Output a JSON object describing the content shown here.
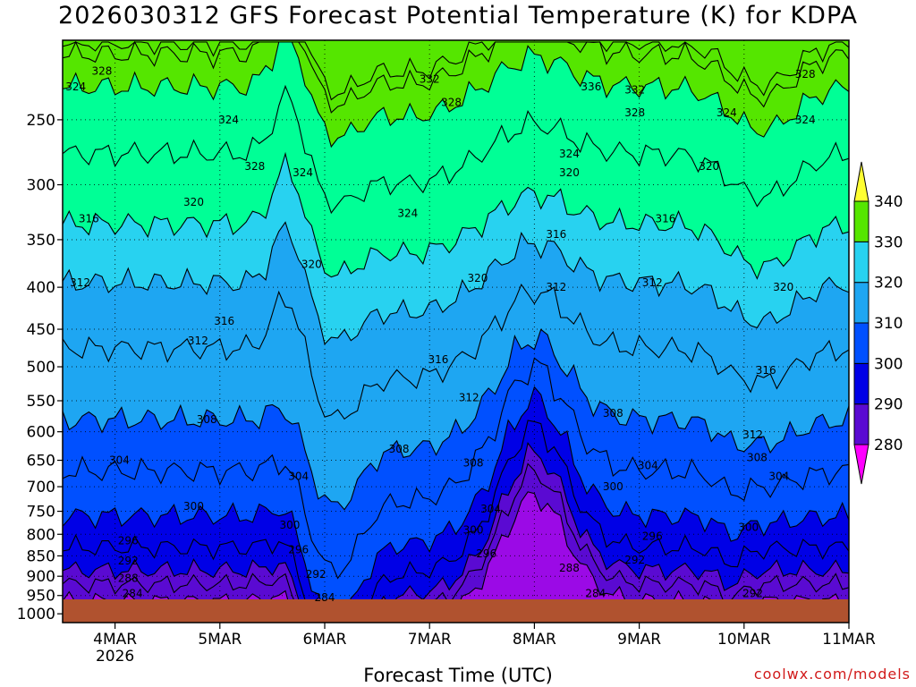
{
  "chart_data": {
    "type": "heatmap",
    "title": "2026030312 GFS Forecast Potential Temperature (K) for KDPA",
    "xlabel": "Forecast Time (UTC)",
    "ylabel": "",
    "credit": "coolwx.com/models",
    "x_ticks": [
      {
        "hours": 12,
        "label": "4MAR",
        "sublabel": "2026"
      },
      {
        "hours": 36,
        "label": "5MAR",
        "sublabel": ""
      },
      {
        "hours": 60,
        "label": "6MAR",
        "sublabel": ""
      },
      {
        "hours": 84,
        "label": "7MAR",
        "sublabel": ""
      },
      {
        "hours": 108,
        "label": "8MAR",
        "sublabel": ""
      },
      {
        "hours": 132,
        "label": "9MAR",
        "sublabel": ""
      },
      {
        "hours": 156,
        "label": "10MAR",
        "sublabel": ""
      },
      {
        "hours": 180,
        "label": "11MAR",
        "sublabel": ""
      }
    ],
    "x_range_hours": [
      0,
      180
    ],
    "y_ticks": [
      250,
      300,
      350,
      400,
      450,
      500,
      550,
      600,
      650,
      700,
      750,
      800,
      850,
      900,
      950,
      1000
    ],
    "y_range_hpa": [
      200,
      1025
    ],
    "y_scale": "log-pressure",
    "colorbar": {
      "levels": [
        280,
        290,
        300,
        310,
        320,
        330,
        340
      ],
      "colors": [
        "#9b0ae6",
        "#5a0ad2",
        "#0000e6",
        "#0050ff",
        "#1ea6f2",
        "#28d2f0",
        "#00ff96",
        "#55e600",
        "#ffff32"
      ],
      "under_color": "#ff00ff",
      "over_color": "#ffff32"
    },
    "surface_color": "#b0522f",
    "isotherm_bases_k": [
      {
        "theta": 284,
        "p": 965
      },
      {
        "theta": 288,
        "p": 920
      },
      {
        "theta": 292,
        "p": 885
      },
      {
        "theta": 296,
        "p": 830
      },
      {
        "theta": 300,
        "p": 760
      },
      {
        "theta": 304,
        "p": 670
      },
      {
        "theta": 308,
        "p": 580
      },
      {
        "theta": 312,
        "p": 475
      },
      {
        "theta": 316,
        "p": 395
      },
      {
        "theta": 320,
        "p": 335
      },
      {
        "theta": 324,
        "p": 275
      },
      {
        "theta": 328,
        "p": 228
      },
      {
        "theta": 332,
        "p": 208
      },
      {
        "theta": 336,
        "p": 201
      }
    ],
    "contour_labels": [
      {
        "theta": 328,
        "hours": 9,
        "p": 218
      },
      {
        "theta": 324,
        "hours": 3,
        "p": 228
      },
      {
        "theta": 316,
        "hours": 6,
        "p": 330
      },
      {
        "theta": 312,
        "hours": 4,
        "p": 395
      },
      {
        "theta": 304,
        "hours": 13,
        "p": 650
      },
      {
        "theta": 300,
        "hours": 30,
        "p": 740
      },
      {
        "theta": 296,
        "hours": 15,
        "p": 815
      },
      {
        "theta": 292,
        "hours": 15,
        "p": 862
      },
      {
        "theta": 288,
        "hours": 15,
        "p": 905
      },
      {
        "theta": 284,
        "hours": 16,
        "p": 945
      },
      {
        "theta": 320,
        "hours": 30,
        "p": 315
      },
      {
        "theta": 316,
        "hours": 37,
        "p": 440
      },
      {
        "theta": 312,
        "hours": 31,
        "p": 465
      },
      {
        "theta": 308,
        "hours": 33,
        "p": 580
      },
      {
        "theta": 324,
        "hours": 38,
        "p": 250
      },
      {
        "theta": 328,
        "hours": 44,
        "p": 285
      },
      {
        "theta": 324,
        "hours": 55,
        "p": 290
      },
      {
        "theta": 320,
        "hours": 57,
        "p": 375
      },
      {
        "theta": 304,
        "hours": 54,
        "p": 680
      },
      {
        "theta": 300,
        "hours": 52,
        "p": 780
      },
      {
        "theta": 296,
        "hours": 54,
        "p": 835
      },
      {
        "theta": 292,
        "hours": 58,
        "p": 895
      },
      {
        "theta": 284,
        "hours": 60,
        "p": 955
      },
      {
        "theta": 324,
        "hours": 79,
        "p": 325
      },
      {
        "theta": 332,
        "hours": 84,
        "p": 223
      },
      {
        "theta": 328,
        "hours": 89,
        "p": 238
      },
      {
        "theta": 320,
        "hours": 95,
        "p": 390
      },
      {
        "theta": 316,
        "hours": 86,
        "p": 490
      },
      {
        "theta": 312,
        "hours": 93,
        "p": 545
      },
      {
        "theta": 308,
        "hours": 77,
        "p": 630
      },
      {
        "theta": 308,
        "hours": 94,
        "p": 655
      },
      {
        "theta": 304,
        "hours": 98,
        "p": 745
      },
      {
        "theta": 300,
        "hours": 94,
        "p": 790
      },
      {
        "theta": 296,
        "hours": 97,
        "p": 845
      },
      {
        "theta": 336,
        "hours": 121,
        "p": 228
      },
      {
        "theta": 332,
        "hours": 131,
        "p": 230
      },
      {
        "theta": 328,
        "hours": 131,
        "p": 245
      },
      {
        "theta": 324,
        "hours": 116,
        "p": 275
      },
      {
        "theta": 320,
        "hours": 116,
        "p": 290
      },
      {
        "theta": 316,
        "hours": 113,
        "p": 345
      },
      {
        "theta": 312,
        "hours": 113,
        "p": 400
      },
      {
        "theta": 308,
        "hours": 126,
        "p": 570
      },
      {
        "theta": 300,
        "hours": 126,
        "p": 700
      },
      {
        "theta": 288,
        "hours": 116,
        "p": 880
      },
      {
        "theta": 284,
        "hours": 122,
        "p": 945
      },
      {
        "theta": 292,
        "hours": 131,
        "p": 860
      },
      {
        "theta": 296,
        "hours": 135,
        "p": 805
      },
      {
        "theta": 304,
        "hours": 134,
        "p": 660
      },
      {
        "theta": 316,
        "hours": 138,
        "p": 330
      },
      {
        "theta": 312,
        "hours": 135,
        "p": 395
      },
      {
        "theta": 320,
        "hours": 148,
        "p": 285
      },
      {
        "theta": 324,
        "hours": 152,
        "p": 245
      },
      {
        "theta": 328,
        "hours": 170,
        "p": 220
      },
      {
        "theta": 324,
        "hours": 170,
        "p": 250
      },
      {
        "theta": 320,
        "hours": 165,
        "p": 400
      },
      {
        "theta": 316,
        "hours": 161,
        "p": 505
      },
      {
        "theta": 312,
        "hours": 158,
        "p": 605
      },
      {
        "theta": 308,
        "hours": 159,
        "p": 645
      },
      {
        "theta": 304,
        "hours": 164,
        "p": 680
      },
      {
        "theta": 300,
        "hours": 157,
        "p": 785
      },
      {
        "theta": 292,
        "hours": 158,
        "p": 945
      }
    ]
  }
}
